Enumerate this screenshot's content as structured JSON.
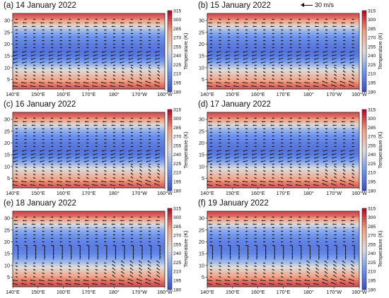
{
  "figure": {
    "reference_vector_label": "30 m/s",
    "colorbar_label": "Temperature (K)",
    "colorbar_ticks": [
      "180",
      "195",
      "210",
      "225",
      "240",
      "255",
      "270",
      "285",
      "300",
      "315"
    ],
    "x_tick_labels": [
      "140°E",
      "150°E",
      "160°E",
      "170°E",
      "180°",
      "170°W",
      "160°W"
    ],
    "y_tick_labels": [
      "5",
      "10",
      "15",
      "20",
      "25",
      "30"
    ]
  },
  "panels": [
    {
      "label": "(a) 14 January 2022"
    },
    {
      "label": "(b) 15 January 2022"
    },
    {
      "label": "(c) 16 January 2022"
    },
    {
      "label": "(d) 17 January 2022"
    },
    {
      "label": "(e) 18 January 2022"
    },
    {
      "label": "(f) 19 January 2022"
    }
  ],
  "chart_data": [
    {
      "type": "heatmap",
      "title": "(a) 14 January 2022",
      "x": [
        140,
        150,
        160,
        170,
        180,
        190,
        200
      ],
      "x_tick_labels": [
        "140°E",
        "150°E",
        "160°E",
        "170°E",
        "180°",
        "170°W",
        "160°W"
      ],
      "xlim": [
        140,
        200
      ],
      "ylim": [
        1,
        33
      ],
      "y_ticks": [
        5,
        10,
        15,
        20,
        25,
        30
      ],
      "z_label": "Temperature (K)",
      "zlim": [
        180,
        315
      ],
      "temperature_profile": {
        "y": [
          1,
          3,
          5,
          7,
          9,
          11,
          13,
          15,
          17,
          19,
          21,
          23,
          25,
          27,
          29,
          31,
          33
        ],
        "K": [
          298,
          290,
          278,
          265,
          250,
          232,
          215,
          202,
          198,
          200,
          205,
          212,
          222,
          240,
          268,
          290,
          300
        ]
      },
      "overlay": "wind vectors (reference 30 m/s)"
    },
    {
      "type": "heatmap",
      "title": "(b) 15 January 2022",
      "x": [
        140,
        150,
        160,
        170,
        180,
        190,
        200
      ],
      "xlim": [
        140,
        200
      ],
      "ylim": [
        1,
        33
      ],
      "zlim": [
        180,
        315
      ],
      "temperature_profile": {
        "y": [
          1,
          3,
          5,
          7,
          9,
          11,
          13,
          15,
          17,
          19,
          21,
          23,
          25,
          27,
          29,
          31,
          33
        ],
        "K": [
          298,
          290,
          278,
          265,
          250,
          232,
          215,
          202,
          198,
          200,
          205,
          212,
          222,
          240,
          268,
          290,
          300
        ]
      },
      "overlay": "wind vectors"
    },
    {
      "type": "heatmap",
      "title": "(c) 16 January 2022",
      "x": [
        140,
        150,
        160,
        170,
        180,
        190,
        200
      ],
      "xlim": [
        140,
        200
      ],
      "ylim": [
        1,
        33
      ],
      "zlim": [
        180,
        315
      ],
      "temperature_profile": {
        "y": [
          1,
          3,
          5,
          7,
          9,
          11,
          13,
          15,
          17,
          19,
          21,
          23,
          25,
          27,
          29,
          31,
          33
        ],
        "K": [
          298,
          290,
          278,
          265,
          250,
          232,
          215,
          202,
          198,
          200,
          205,
          212,
          222,
          240,
          268,
          290,
          300
        ]
      },
      "overlay": "wind vectors"
    },
    {
      "type": "heatmap",
      "title": "(d) 17 January 2022",
      "x": [
        140,
        150,
        160,
        170,
        180,
        190,
        200
      ],
      "xlim": [
        140,
        200
      ],
      "ylim": [
        1,
        33
      ],
      "zlim": [
        180,
        315
      ],
      "temperature_profile": {
        "y": [
          1,
          3,
          5,
          7,
          9,
          11,
          13,
          15,
          17,
          19,
          21,
          23,
          25,
          27,
          29,
          31,
          33
        ],
        "K": [
          298,
          290,
          278,
          265,
          250,
          232,
          215,
          202,
          198,
          200,
          205,
          212,
          222,
          240,
          268,
          290,
          300
        ]
      },
      "overlay": "wind vectors"
    },
    {
      "type": "heatmap",
      "title": "(e) 18 January 2022",
      "x": [
        140,
        150,
        160,
        170,
        180,
        190,
        200
      ],
      "xlim": [
        140,
        200
      ],
      "ylim": [
        1,
        33
      ],
      "zlim": [
        180,
        315
      ],
      "temperature_profile": {
        "y": [
          1,
          3,
          5,
          7,
          9,
          11,
          13,
          15,
          17,
          19,
          21,
          23,
          25,
          27,
          29,
          31,
          33
        ],
        "K": [
          300,
          294,
          283,
          268,
          252,
          235,
          220,
          208,
          202,
          203,
          207,
          214,
          224,
          242,
          270,
          292,
          302
        ]
      },
      "overlay": "wind vectors"
    },
    {
      "type": "heatmap",
      "title": "(f) 19 January 2022",
      "x": [
        140,
        150,
        160,
        170,
        180,
        190,
        200
      ],
      "xlim": [
        140,
        200
      ],
      "ylim": [
        1,
        33
      ],
      "zlim": [
        180,
        315
      ],
      "temperature_profile": {
        "y": [
          1,
          3,
          5,
          7,
          9,
          11,
          13,
          15,
          17,
          19,
          21,
          23,
          25,
          27,
          29,
          31,
          33
        ],
        "K": [
          300,
          294,
          283,
          268,
          252,
          235,
          220,
          208,
          202,
          203,
          207,
          214,
          224,
          242,
          270,
          292,
          302
        ]
      },
      "overlay": "wind vectors"
    }
  ],
  "colors": {
    "cold": "#3d5fc9",
    "mid": "#e8e8f0",
    "warm": "#d9533e",
    "axis": "#222222"
  }
}
